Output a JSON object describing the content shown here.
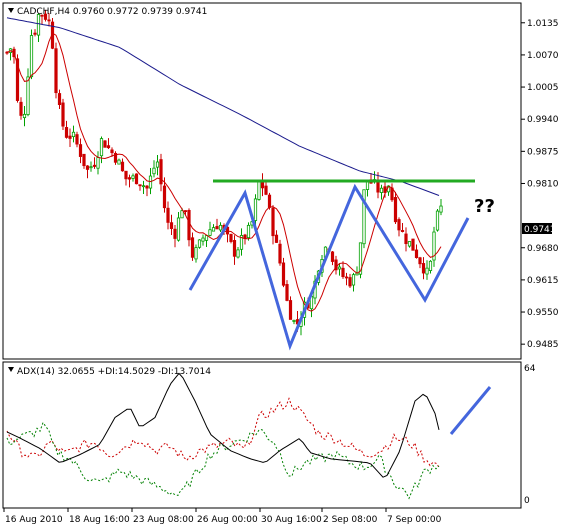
{
  "chart_data": [
    {
      "type": "candlestick",
      "symbol_line": "CADCHF,H4  0.9760 0.9772 0.9739 0.9741",
      "ylim": [
        0.9455,
        1.0175
      ],
      "y_ticks": [
        "1.0135",
        "1.0070",
        "1.0005",
        "0.9940",
        "0.9875",
        "0.9810",
        "0.9680",
        "0.9615",
        "0.9550",
        "0.9485"
      ],
      "last_price": "0.9741",
      "x_ticks": [
        "16 Aug 2010",
        "18 Aug 16:00",
        "23 Aug 08:00",
        "26 Aug 00:00",
        "30 Aug 16:00",
        "2 Sep 08:00",
        "7 Sep 00:00"
      ],
      "annotation": "??",
      "resistance_level": 0.9835,
      "colors": {
        "bull": "#00a000",
        "bear": "#cc0000",
        "ma_fast": "#cc0000",
        "ma_slow": "#1a1a8c",
        "resistance": "#22aa22",
        "pattern": "#4466dd"
      }
    },
    {
      "type": "line",
      "header": "ADX(14) 32.0655 +DI:14.5029 -DI:13.7014",
      "y_ticks": [
        "64",
        "0"
      ],
      "ylim": [
        0,
        64
      ],
      "colors": {
        "adx": "#000000",
        "plus_di": "#008000",
        "minus_di": "#cc0000",
        "pattern": "#4466dd"
      }
    }
  ]
}
